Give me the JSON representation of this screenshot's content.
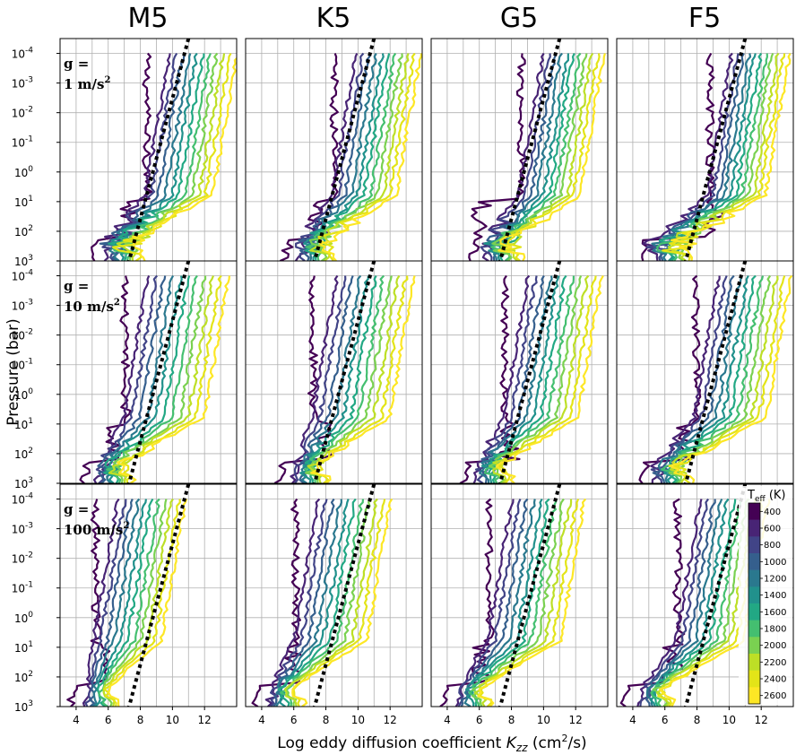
{
  "chart_data": {
    "type": "line",
    "xlabel_main": "Log eddy diffusion coefficient ",
    "xlabel_sym": "K",
    "xlabel_sub": "zz",
    "xlabel_unit": " (cm",
    "xlabel_sup": "2",
    "xlabel_end": "/s)",
    "ylabel": "Pressure (bar)",
    "xlim": [
      3,
      14
    ],
    "x_ticks": [
      4,
      6,
      8,
      10,
      12
    ],
    "y_log_scale": true,
    "y_inverted": true,
    "ylim_bar": [
      1000,
      0.0001
    ],
    "y_tick_labels": [
      {
        "base": "10",
        "exp": "-4"
      },
      {
        "base": "10",
        "exp": "-3"
      },
      {
        "base": "10",
        "exp": "-2"
      },
      {
        "base": "10",
        "exp": "-1"
      },
      {
        "base": "10",
        "exp": "0"
      },
      {
        "base": "10",
        "exp": "1"
      },
      {
        "base": "10",
        "exp": "2"
      },
      {
        "base": "10",
        "exp": "3"
      }
    ],
    "grid": true,
    "columns": [
      "M5",
      "K5",
      "G5",
      "F5"
    ],
    "rows": [
      {
        "prefix": "g =",
        "value": "1 m/s",
        "sup": "2"
      },
      {
        "prefix": "g =",
        "value": "10 m/s",
        "sup": "2"
      },
      {
        "prefix": "g =",
        "value": "100 m/s",
        "sup": "2"
      }
    ],
    "colorbar": {
      "title": "T",
      "title_sub": "eff",
      "title_unit": " (K)",
      "teff": [
        400,
        600,
        800,
        1000,
        1200,
        1400,
        1600,
        1800,
        2000,
        2200,
        2400,
        2600
      ],
      "labels": [
        "400",
        "600",
        "800",
        "1000",
        "1200",
        "1400",
        "1600",
        "1800",
        "2000",
        "2200",
        "2400",
        "2600"
      ],
      "colors": [
        "#440154",
        "#482475",
        "#414487",
        "#355f8d",
        "#2a788e",
        "#21918c",
        "#22a884",
        "#44bf70",
        "#7ad151",
        "#bddf26",
        "#e3e418",
        "#fde725"
      ]
    },
    "reference_line": {
      "style": "dotted",
      "color": "#000000",
      "log_p_top": -4.5,
      "log_p_bottom": 3,
      "x_at_top": 11.0,
      "x_at_bottom": 7.3
    },
    "series_description_keys": [
      "teff"
    ],
    "panels": [
      {
        "row": 0,
        "col": 0,
        "upper_start_x": 8.8,
        "spread": 0.42,
        "deep_x": 6.1,
        "deep_jitter": 2.0,
        "low_outlier_x": 7.2
      },
      {
        "row": 0,
        "col": 1,
        "upper_start_x": 8.9,
        "spread": 0.4,
        "deep_x": 6.5,
        "deep_jitter": 1.6,
        "low_outlier_x": 7.6
      },
      {
        "row": 0,
        "col": 2,
        "upper_start_x": 9.0,
        "spread": 0.38,
        "deep_x": 6.6,
        "deep_jitter": 1.8,
        "low_outlier_x": 6.2
      },
      {
        "row": 0,
        "col": 3,
        "upper_start_x": 9.2,
        "spread": 0.36,
        "deep_x": 5.6,
        "deep_jitter": 2.2,
        "low_outlier_x": 9.0
      },
      {
        "row": 1,
        "col": 0,
        "upper_start_x": 7.4,
        "spread": 0.5,
        "deep_x": 5.5,
        "deep_jitter": 1.2,
        "low_outlier_x": 6.4
      },
      {
        "row": 1,
        "col": 1,
        "upper_start_x": 7.6,
        "spread": 0.48,
        "deep_x": 6.2,
        "deep_jitter": 0.9,
        "low_outlier_x": 7.8
      },
      {
        "row": 1,
        "col": 2,
        "upper_start_x": 8.0,
        "spread": 0.46,
        "deep_x": 6.0,
        "deep_jitter": 1.0,
        "low_outlier_x": 7.8
      },
      {
        "row": 1,
        "col": 3,
        "upper_start_x": 8.3,
        "spread": 0.45,
        "deep_x": 5.6,
        "deep_jitter": 1.4,
        "low_outlier_x": 7.4
      },
      {
        "row": 2,
        "col": 0,
        "upper_start_x": 5.6,
        "spread": 0.42,
        "deep_x": 4.7,
        "deep_jitter": 0.3,
        "low_outlier_x": 5.8
      },
      {
        "row": 2,
        "col": 1,
        "upper_start_x": 6.5,
        "spread": 0.45,
        "deep_x": 4.6,
        "deep_jitter": 0.6,
        "low_outlier_x": 5.9
      },
      {
        "row": 2,
        "col": 2,
        "upper_start_x": 7.0,
        "spread": 0.45,
        "deep_x": 4.8,
        "deep_jitter": 0.6,
        "low_outlier_x": 6.0
      },
      {
        "row": 2,
        "col": 3,
        "upper_start_x": 7.2,
        "spread": 0.42,
        "deep_x": 4.6,
        "deep_jitter": 0.6,
        "low_outlier_x": 6.4
      }
    ]
  }
}
